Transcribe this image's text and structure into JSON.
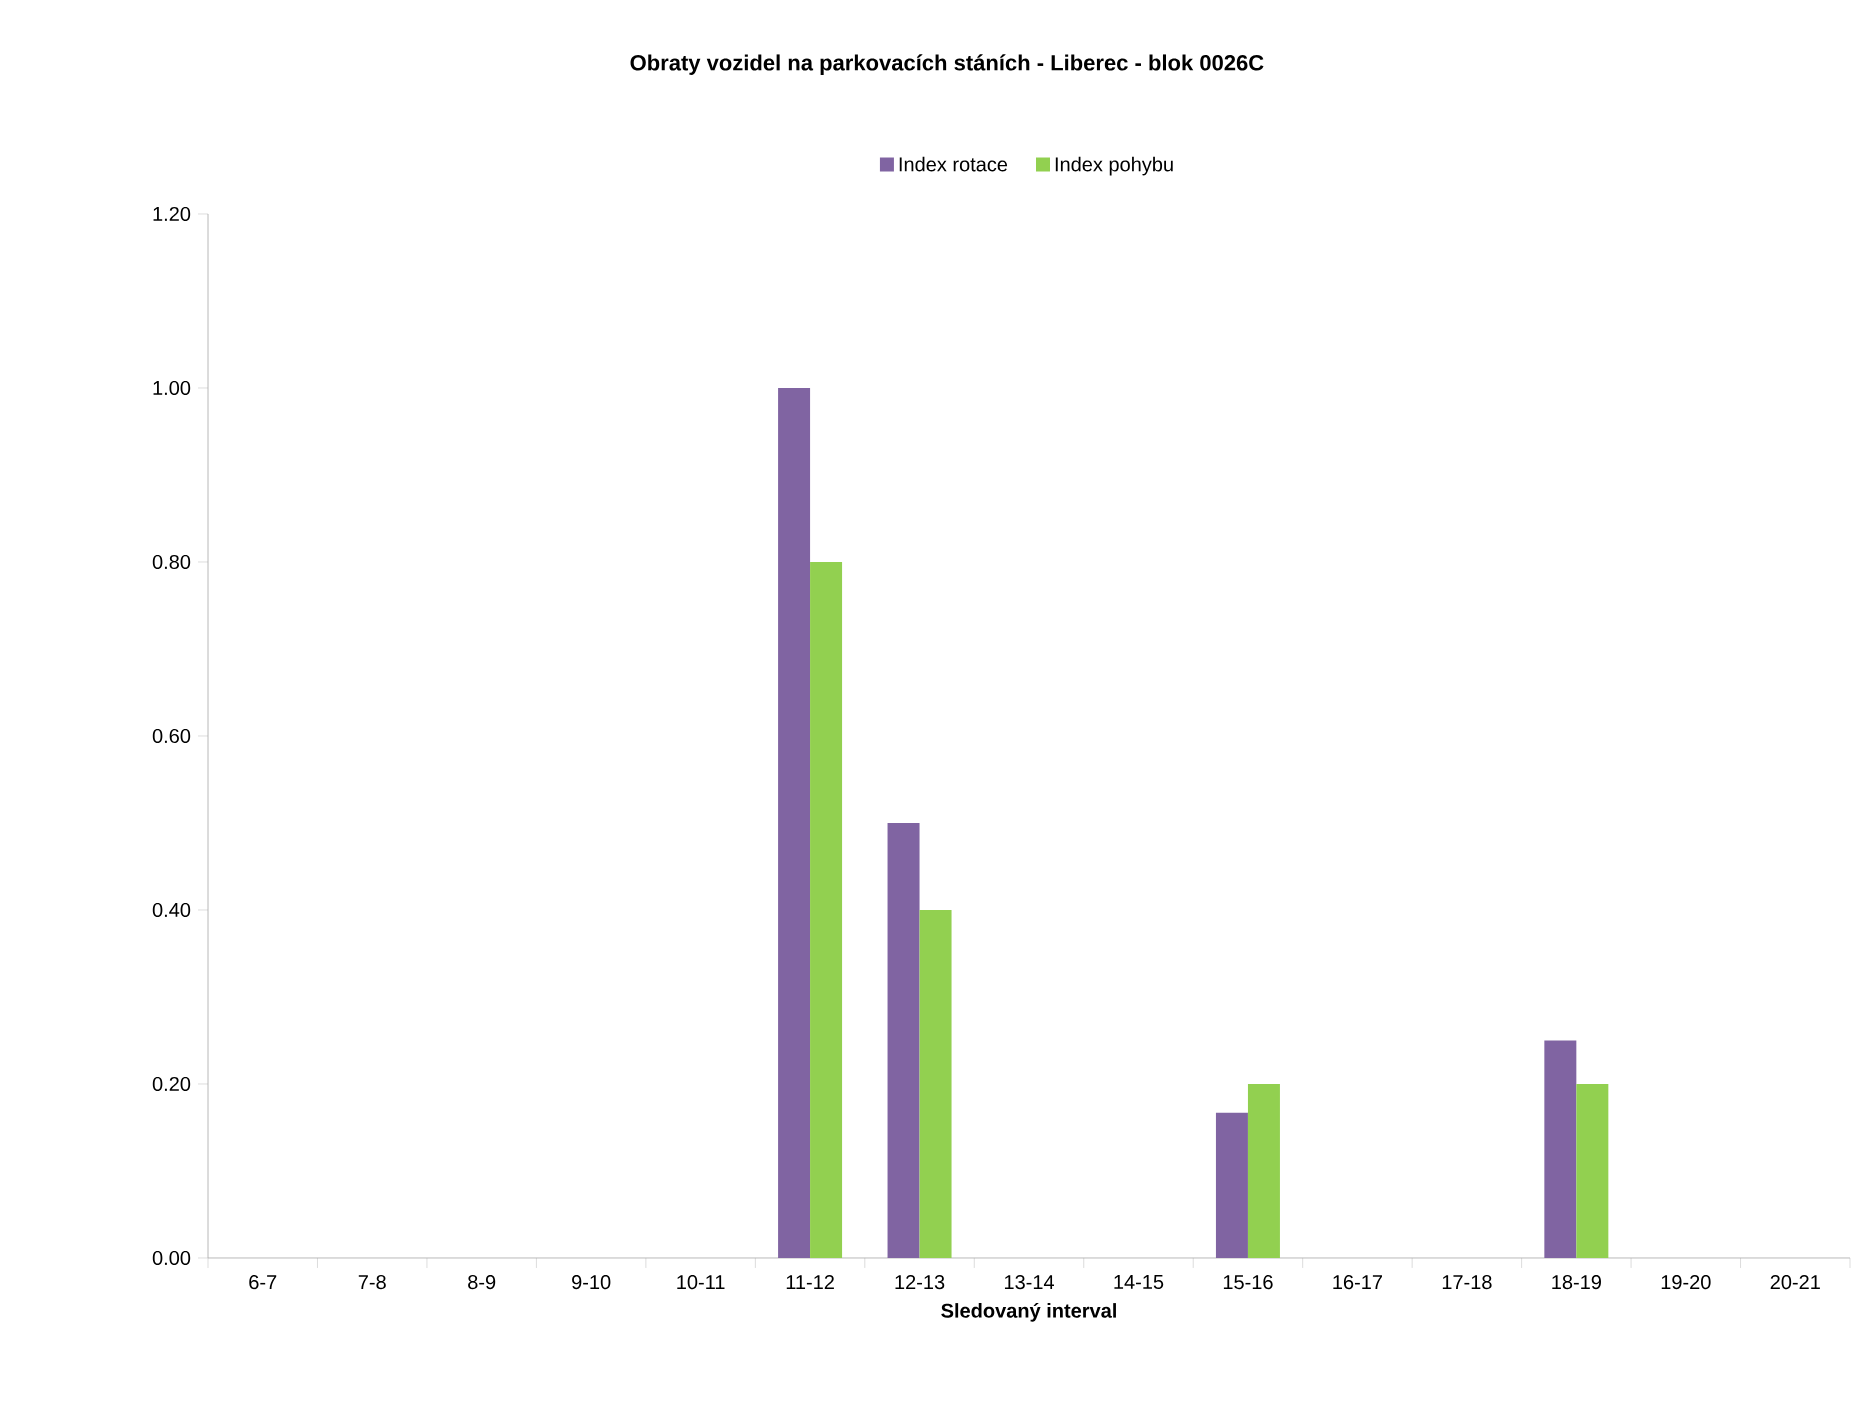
{
  "chart_data": {
    "type": "bar",
    "title": "Obraty vozidel na parkovacích stáních - Liberec - blok 0026C",
    "xlabel": "Sledovaný interval",
    "categories": [
      "6-7",
      "7-8",
      "8-9",
      "9-10",
      "10-11",
      "11-12",
      "12-13",
      "13-14",
      "14-15",
      "15-16",
      "16-17",
      "17-18",
      "18-19",
      "19-20",
      "20-21"
    ],
    "series": [
      {
        "name": "Index rotace",
        "color": "#8064a2",
        "values": [
          0,
          0,
          0,
          0,
          0,
          1.0,
          0.5,
          0,
          0,
          0.167,
          0,
          0,
          0.25,
          0,
          0
        ]
      },
      {
        "name": "Index pohybu",
        "color": "#92d050",
        "values": [
          0,
          0,
          0,
          0,
          0,
          0.8,
          0.4,
          0,
          0,
          0.2,
          0,
          0,
          0.2,
          0,
          0
        ]
      }
    ],
    "ylim": [
      0,
      1.2
    ],
    "yticks": [
      {
        "value": 0,
        "label": "0.00"
      },
      {
        "value": 0.2,
        "label": "0.20"
      },
      {
        "value": 0.4,
        "label": "0.40"
      },
      {
        "value": 0.6,
        "label": "0.60"
      },
      {
        "value": 0.8,
        "label": "0.80"
      },
      {
        "value": 1.0,
        "label": "1.00"
      },
      {
        "value": 1.2,
        "label": "1.20"
      }
    ],
    "grid": false,
    "legend": "top"
  }
}
